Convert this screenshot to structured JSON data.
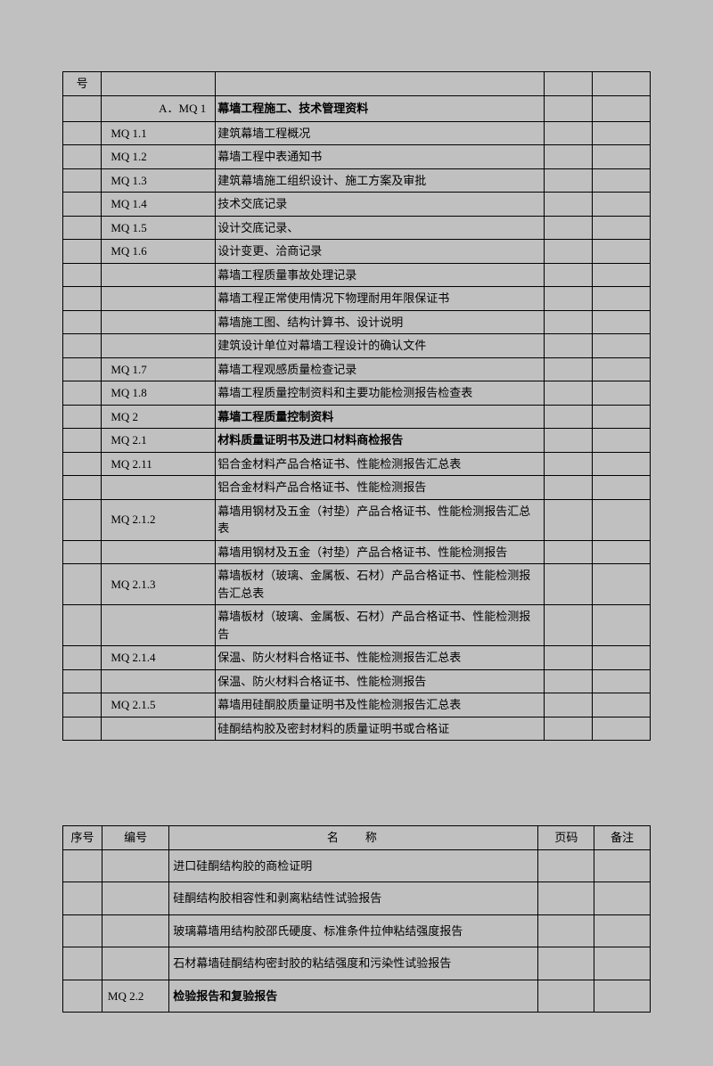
{
  "table1": {
    "header": {
      "col1": "号"
    },
    "section_code": "A．MQ 1",
    "section_title": "幕墙工程施工、技术管理资料",
    "rows": [
      {
        "code": "MQ  1.1",
        "name": "建筑幕墙工程概况"
      },
      {
        "code": "MQ  1.2",
        "name": "幕墙工程中表通知书"
      },
      {
        "code": "MQ  1.3",
        "name": "建筑幕墙施工组织设计、施工方案及审批"
      },
      {
        "code": "MQ  1.4",
        "name": "技术交底记录"
      },
      {
        "code": "MQ  1.5",
        "name": "设计交底记录、"
      },
      {
        "code": "MQ  1.6",
        "name": "设计变更、洽商记录"
      },
      {
        "code": "",
        "name": "幕墙工程质量事故处理记录"
      },
      {
        "code": "",
        "name": "幕墙工程正常使用情况下物理耐用年限保证书"
      },
      {
        "code": "",
        "name": "幕墙施工图、结构计算书、设计说明"
      },
      {
        "code": "",
        "name": "建筑设计单位对幕墙工程设计的确认文件"
      },
      {
        "code": "MQ  1.7",
        "name": "幕墙工程观感质量检查记录"
      },
      {
        "code": "MQ  1.8",
        "name": "幕墙工程质量控制资料和主要功能检测报告检查表"
      },
      {
        "code": "MQ  2",
        "name": "幕墙工程质量控制资料",
        "bold": true
      },
      {
        "code": "MQ  2.1",
        "name": "材料质量证明书及进口材料商检报告",
        "bold": true
      },
      {
        "code": "MQ 2.11",
        "name": "铝合金材料产品合格证书、性能检测报告汇总表"
      },
      {
        "code": "",
        "name": "铝合金材料产品合格证书、性能检测报告"
      },
      {
        "code": "MQ 2.1.2",
        "name": "幕墙用钢材及五金（衬垫）产品合格证书、性能检测报告汇总表"
      },
      {
        "code": "",
        "name": "幕墙用钢材及五金（衬垫）产品合格证书、性能检测报告"
      },
      {
        "code": "MQ 2.1.3",
        "name": "幕墙板材（玻璃、金属板、石材）产品合格证书、性能检测报告汇总表"
      },
      {
        "code": "",
        "name": "幕墙板材（玻璃、金属板、石材）产品合格证书、性能检测报告"
      },
      {
        "code": "MQ 2.1.4",
        "name": "保温、防火材料合格证书、性能检测报告汇总表"
      },
      {
        "code": "",
        "name": "保温、防火材料合格证书、性能检测报告"
      },
      {
        "code": "MQ 2.1.5",
        "name": "幕墙用硅酮胶质量证明书及性能检测报告汇总表"
      },
      {
        "code": "",
        "name": "硅酮结构胶及密封材料的质量证明书或合格证"
      }
    ]
  },
  "table2": {
    "header": {
      "seq": "序号",
      "code": "编号",
      "name": "名称",
      "page": "页码",
      "note": "备注"
    },
    "rows": [
      {
        "code": "",
        "name": "进口硅酮结构胶的商检证明"
      },
      {
        "code": "",
        "name": "硅酮结构胶相容性和剥离粘结性试验报告"
      },
      {
        "code": "",
        "name": "玻璃幕墙用结构胶邵氏硬度、标准条件拉伸粘结强度报告"
      },
      {
        "code": "",
        "name": "石材幕墙硅酮结构密封胶的粘结强度和污染性试验报告"
      },
      {
        "code": "MQ  2.2",
        "name": "检验报告和复验报告",
        "bold": true
      }
    ]
  }
}
